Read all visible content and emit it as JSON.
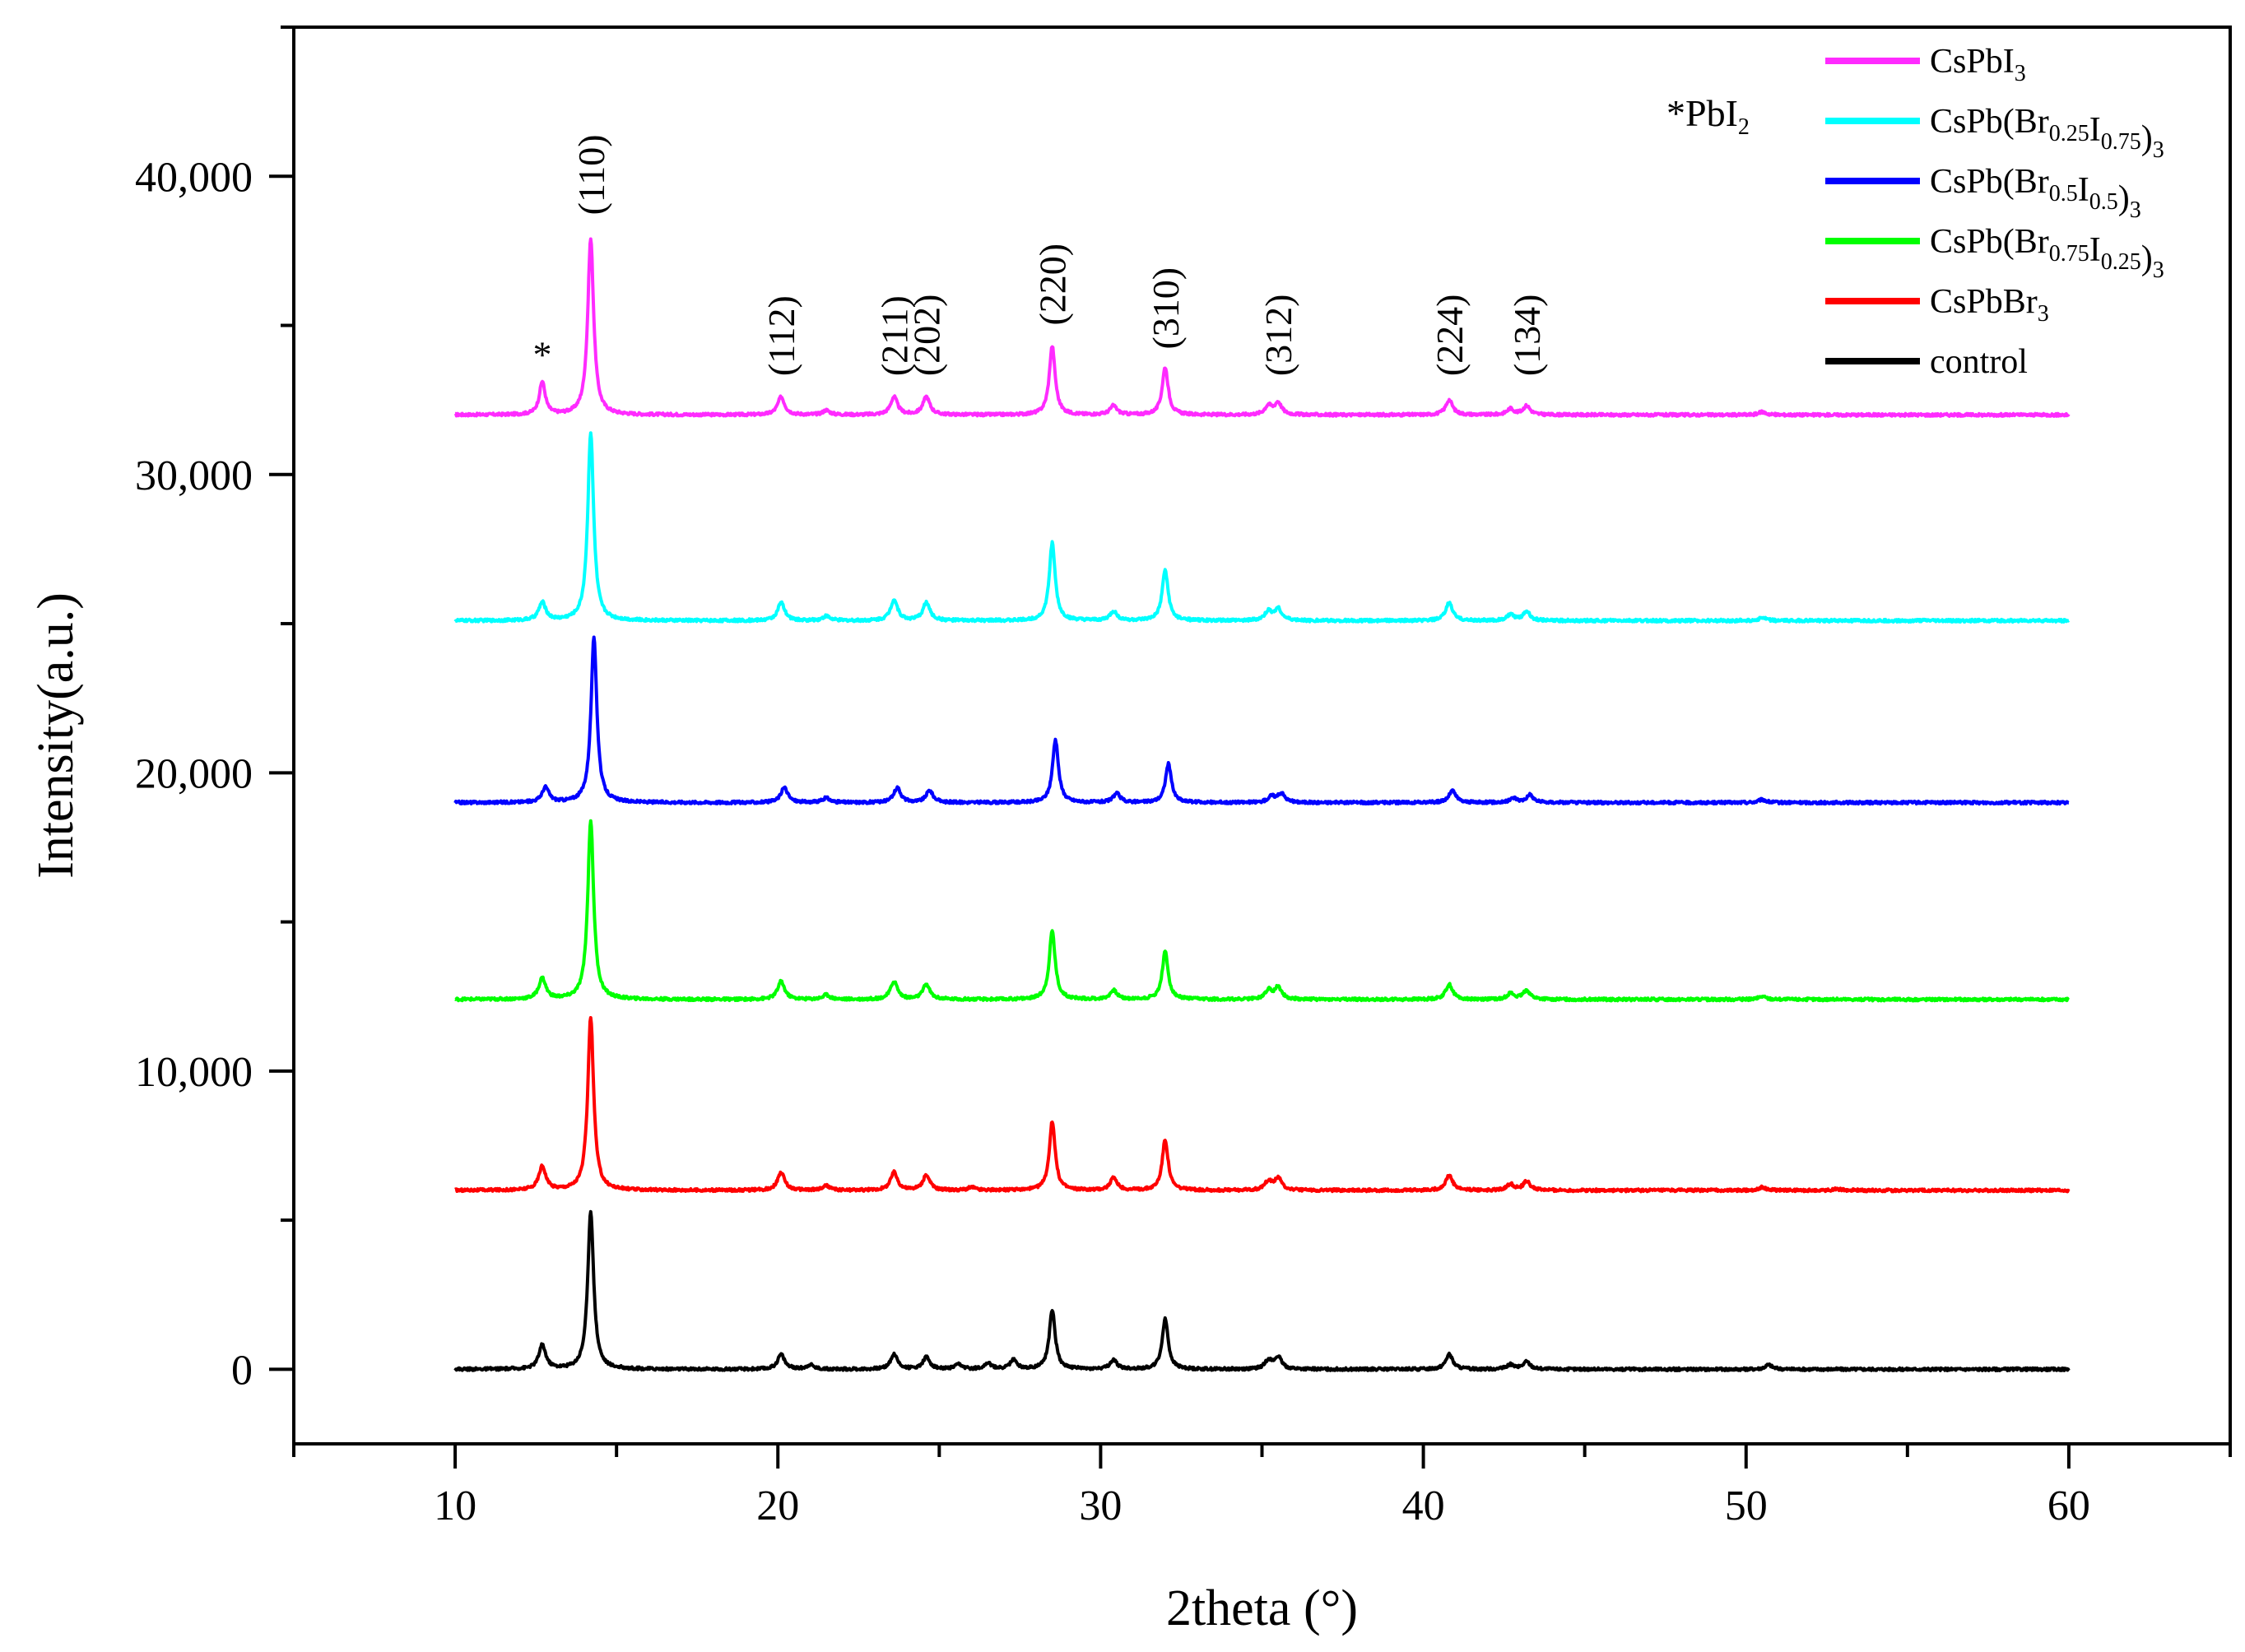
{
  "chart_data": {
    "type": "line",
    "title": "",
    "xlabel": "2theta (°)",
    "ylabel": "Intensity(a.u.)",
    "xlim": [
      5,
      65
    ],
    "ylim": [
      -2500,
      45000
    ],
    "x_ticks": [
      10,
      20,
      30,
      40,
      50,
      60
    ],
    "x_tick_labels": [
      "10",
      "20",
      "30",
      "40",
      "50",
      "60"
    ],
    "y_ticks": [
      0,
      10000,
      20000,
      30000,
      40000
    ],
    "y_tick_labels": [
      "0",
      "10,000",
      "20,000",
      "30,000",
      "40,000"
    ],
    "grid": false,
    "legend_position": "top-right",
    "x_range": [
      10,
      60
    ],
    "series": [
      {
        "name": "CsPbI3",
        "legend_parts": [
          [
            "CsPbI",
            ""
          ],
          [
            "3",
            "sub"
          ]
        ],
        "color": "#ff2bff",
        "baseline": 32000,
        "peaks": [
          [
            12.7,
            1100
          ],
          [
            14.2,
            5900
          ],
          [
            20.1,
            600
          ],
          [
            21.5,
            150
          ],
          [
            23.6,
            600
          ],
          [
            24.6,
            600
          ],
          [
            28.5,
            2300
          ],
          [
            30.4,
            300
          ],
          [
            32.0,
            1600
          ],
          [
            35.2,
            300
          ],
          [
            35.5,
            400
          ],
          [
            40.8,
            500
          ],
          [
            42.7,
            200
          ],
          [
            43.2,
            300
          ],
          [
            50.5,
            100
          ]
        ]
      },
      {
        "name": "CsPb(Br0.25I0.75)3",
        "legend_parts": [
          [
            "CsPb(Br",
            ""
          ],
          [
            "0.25",
            "sub"
          ],
          [
            "I",
            ""
          ],
          [
            "0.75",
            "sub"
          ],
          [
            ")",
            ""
          ],
          [
            "3",
            "sub"
          ]
        ],
        "color": "#00ffff",
        "baseline": 25100,
        "peaks": [
          [
            12.7,
            600
          ],
          [
            14.2,
            6300
          ],
          [
            20.1,
            600
          ],
          [
            21.5,
            150
          ],
          [
            23.6,
            700
          ],
          [
            24.6,
            600
          ],
          [
            28.5,
            2600
          ],
          [
            30.4,
            300
          ],
          [
            32.0,
            1700
          ],
          [
            35.2,
            300
          ],
          [
            35.5,
            400
          ],
          [
            40.8,
            600
          ],
          [
            42.7,
            200
          ],
          [
            43.2,
            300
          ],
          [
            50.5,
            100
          ]
        ]
      },
      {
        "name": "CsPb(Br0.5I0.5)3",
        "legend_parts": [
          [
            "CsPb(Br",
            ""
          ],
          [
            "0.5",
            "sub"
          ],
          [
            "I",
            ""
          ],
          [
            "0.5",
            "sub"
          ],
          [
            ")",
            ""
          ],
          [
            "3",
            "sub"
          ]
        ],
        "color": "#0000ff",
        "baseline": 19000,
        "peaks": [
          [
            12.8,
            500
          ],
          [
            14.3,
            5500
          ],
          [
            20.2,
            500
          ],
          [
            21.5,
            150
          ],
          [
            23.7,
            500
          ],
          [
            24.7,
            400
          ],
          [
            28.6,
            2100
          ],
          [
            30.5,
            300
          ],
          [
            32.1,
            1300
          ],
          [
            35.3,
            200
          ],
          [
            35.6,
            300
          ],
          [
            40.9,
            400
          ],
          [
            42.8,
            150
          ],
          [
            43.3,
            250
          ],
          [
            50.5,
            100
          ]
        ]
      },
      {
        "name": "CsPb(Br0.75I0.25)3",
        "legend_parts": [
          [
            "CsPb(Br",
            ""
          ],
          [
            "0.75",
            "sub"
          ],
          [
            "I",
            ""
          ],
          [
            "0.25",
            "sub"
          ],
          [
            ")",
            ""
          ],
          [
            "3",
            "sub"
          ]
        ],
        "color": "#00ff00",
        "baseline": 12400,
        "peaks": [
          [
            12.7,
            700
          ],
          [
            14.2,
            6000
          ],
          [
            20.1,
            600
          ],
          [
            21.5,
            150
          ],
          [
            23.6,
            600
          ],
          [
            24.6,
            500
          ],
          [
            28.5,
            2300
          ],
          [
            30.4,
            300
          ],
          [
            32.0,
            1600
          ],
          [
            35.2,
            300
          ],
          [
            35.5,
            400
          ],
          [
            40.8,
            500
          ],
          [
            42.7,
            200
          ],
          [
            43.2,
            300
          ],
          [
            50.5,
            100
          ]
        ]
      },
      {
        "name": "CsPbBr3",
        "legend_parts": [
          [
            "CsPbBr",
            ""
          ],
          [
            "3",
            "sub"
          ]
        ],
        "color": "#ff0000",
        "baseline": 6000,
        "peaks": [
          [
            12.7,
            800
          ],
          [
            14.2,
            5800
          ],
          [
            20.1,
            600
          ],
          [
            21.5,
            150
          ],
          [
            23.6,
            600
          ],
          [
            24.6,
            500
          ],
          [
            26.0,
            100
          ],
          [
            28.5,
            2300
          ],
          [
            30.4,
            400
          ],
          [
            32.0,
            1700
          ],
          [
            35.2,
            300
          ],
          [
            35.5,
            400
          ],
          [
            40.8,
            500
          ],
          [
            42.7,
            200
          ],
          [
            43.2,
            300
          ],
          [
            50.5,
            100
          ],
          [
            52.8,
            50
          ]
        ]
      },
      {
        "name": "control",
        "legend_parts": [
          [
            "control",
            ""
          ]
        ],
        "color": "#000000",
        "baseline": 0,
        "peaks": [
          [
            12.7,
            800
          ],
          [
            14.2,
            5300
          ],
          [
            20.1,
            500
          ],
          [
            21.0,
            150
          ],
          [
            23.6,
            500
          ],
          [
            24.6,
            400
          ],
          [
            25.6,
            150
          ],
          [
            26.5,
            200
          ],
          [
            27.3,
            300
          ],
          [
            28.5,
            2000
          ],
          [
            30.4,
            300
          ],
          [
            32.0,
            1700
          ],
          [
            35.2,
            300
          ],
          [
            35.5,
            400
          ],
          [
            40.8,
            500
          ],
          [
            42.7,
            150
          ],
          [
            43.2,
            250
          ],
          [
            50.7,
            150
          ]
        ]
      }
    ],
    "annotations": [
      {
        "text": "*",
        "x": 12.7,
        "y": 33600,
        "rotate": false
      },
      {
        "text": "(110)",
        "x": 14.2,
        "y": 38700,
        "rotate": true
      },
      {
        "text": "(112)",
        "x": 20.1,
        "y": 33300,
        "rotate": true
      },
      {
        "text": "(211)",
        "x": 23.6,
        "y": 33300,
        "rotate": true
      },
      {
        "text": "(202)",
        "x": 24.6,
        "y": 33300,
        "rotate": true
      },
      {
        "text": "(220)",
        "x": 28.5,
        "y": 35000,
        "rotate": true
      },
      {
        "text": "(310)",
        "x": 32.0,
        "y": 34200,
        "rotate": true
      },
      {
        "text": "(312)",
        "x": 35.5,
        "y": 33300,
        "rotate": true
      },
      {
        "text": "(224)",
        "x": 40.8,
        "y": 33300,
        "rotate": true
      },
      {
        "text": "(134)",
        "x": 43.2,
        "y": 33300,
        "rotate": true
      }
    ],
    "marker_note": {
      "parts": [
        [
          "*PbI",
          ""
        ],
        [
          "2",
          "sub"
        ]
      ]
    }
  }
}
